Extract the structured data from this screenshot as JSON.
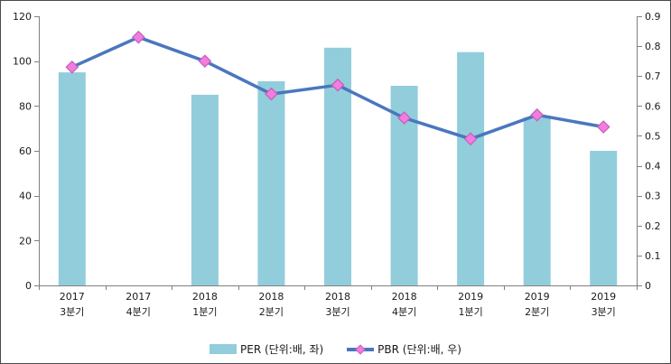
{
  "figure": {
    "background": "#FFFFFF",
    "border_color": "#4A4A4A",
    "axis_color": "#808080",
    "text_color": "#1A1A1A"
  },
  "chart_data": {
    "type": "bar",
    "subtype": "bar-line-combo-dual-axis",
    "title": "",
    "xlabel": "",
    "ylabel_left": "PER",
    "ylabel_right": "PBR",
    "grid": false,
    "legend_position": "bottom-center",
    "categories": [
      "2017 3분기",
      "2017 4분기",
      "2018 1분기",
      "2018 2분기",
      "2018 3분기",
      "2018 4분기",
      "2019 1분기",
      "2019 2분기",
      "2019 3분기"
    ],
    "series": [
      {
        "name": "PER (단위:배, 좌)",
        "type": "bar",
        "axis": "left",
        "color": "#92CDDC",
        "values": [
          95,
          null,
          85,
          91,
          106,
          89,
          104,
          75,
          60
        ]
      },
      {
        "name": "PBR (단위:배, 우)",
        "type": "line",
        "axis": "right",
        "line_color": "#4A77BE",
        "marker": "diamond",
        "marker_color": "#F27CE0",
        "marker_border_color": "#C45FB8",
        "values": [
          0.73,
          0.83,
          0.75,
          0.64,
          0.67,
          0.56,
          0.49,
          0.57,
          0.53
        ]
      }
    ],
    "left_axis": {
      "min": 0,
      "max": 120,
      "step": 20,
      "tick_labels": [
        "0",
        "20",
        "40",
        "60",
        "80",
        "100",
        "120"
      ]
    },
    "right_axis": {
      "min": 0,
      "max": 0.9,
      "step": 0.1,
      "tick_labels": [
        "0",
        "0.1",
        "0.2",
        "0.3",
        "0.4",
        "0.5",
        "0.6",
        "0.7",
        "0.8",
        "0.9"
      ]
    }
  }
}
